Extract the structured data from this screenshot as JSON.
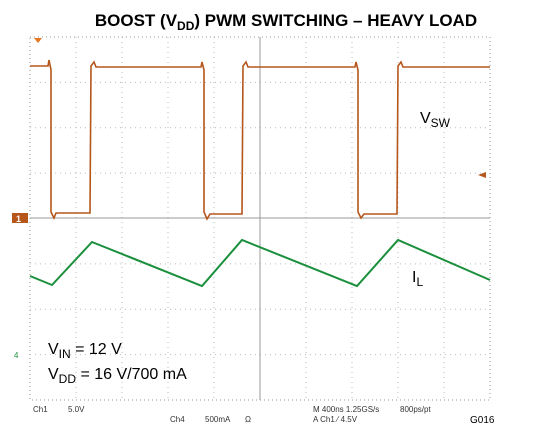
{
  "title": {
    "main": "BOOST (V",
    "sub": "DD",
    "rest": ") PWM SWITCHING – HEAVY LOAD"
  },
  "labels": {
    "vsw": {
      "main": "V",
      "sub": "SW"
    },
    "il": {
      "main": "I",
      "sub": "L"
    },
    "vin": {
      "main": "V",
      "sub": "IN",
      "rest": " = 12 V"
    },
    "vdd": {
      "main": "V",
      "sub": "DD",
      "rest": " = 16 V/700 mA"
    }
  },
  "markers": {
    "ch1": "1",
    "ch4": "4"
  },
  "footer": {
    "ch1": "Ch1",
    "ch1_scale": "5.0V",
    "ch4": "Ch4",
    "ch4_scale": "500mA",
    "ch4_unit": "Ω",
    "timebase": "M 400ns 1.25GS/s",
    "resolution": "800ps/pt",
    "trigger": "A Ch1 ⁄ 4.5V",
    "figure": "G016"
  }
}
